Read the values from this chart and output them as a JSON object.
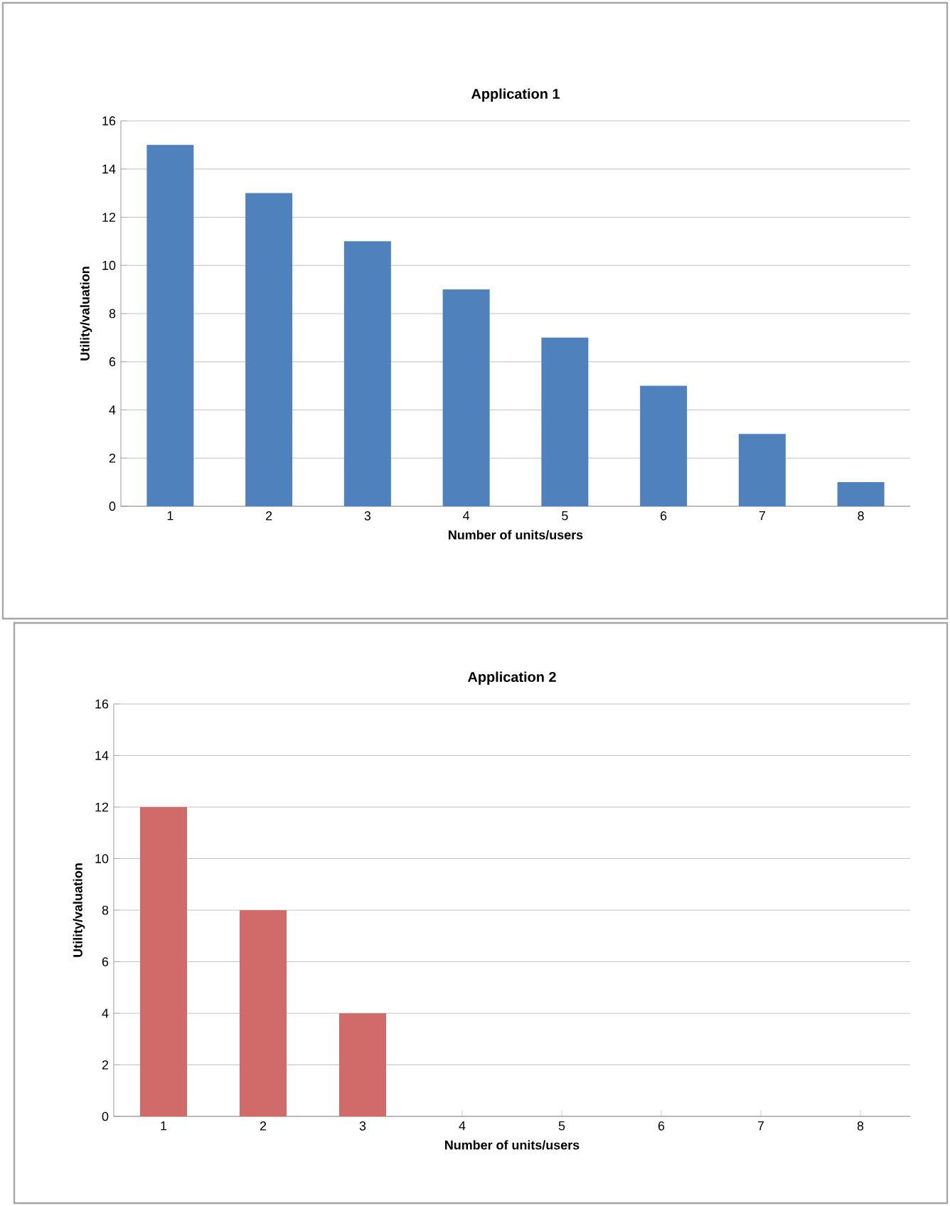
{
  "chart_data": [
    {
      "type": "bar",
      "title": "Application 1",
      "xlabel": "Number of units/users",
      "ylabel": "Utility/valuation",
      "categories": [
        "1",
        "2",
        "3",
        "4",
        "5",
        "6",
        "7",
        "8"
      ],
      "series": [
        {
          "color": "#4f81bd",
          "values": [
            15,
            13,
            11,
            9,
            7,
            5,
            3,
            1
          ]
        }
      ],
      "ylim": [
        0,
        16
      ],
      "yticks": [
        0,
        2,
        4,
        6,
        8,
        10,
        12,
        14,
        16
      ],
      "grid": "y"
    },
    {
      "type": "bar",
      "title": "Application 2",
      "xlabel": "Number of units/users",
      "ylabel": "Utility/valuation",
      "categories": [
        "1",
        "2",
        "3",
        "4",
        "5",
        "6",
        "7",
        "8"
      ],
      "series": [
        {
          "color": "#d16b69",
          "values": [
            12,
            8,
            4,
            0,
            0,
            0,
            0,
            0
          ]
        }
      ],
      "ylim": [
        0,
        16
      ],
      "yticks": [
        0,
        2,
        4,
        6,
        8,
        10,
        12,
        14,
        16
      ],
      "grid": "y"
    }
  ]
}
